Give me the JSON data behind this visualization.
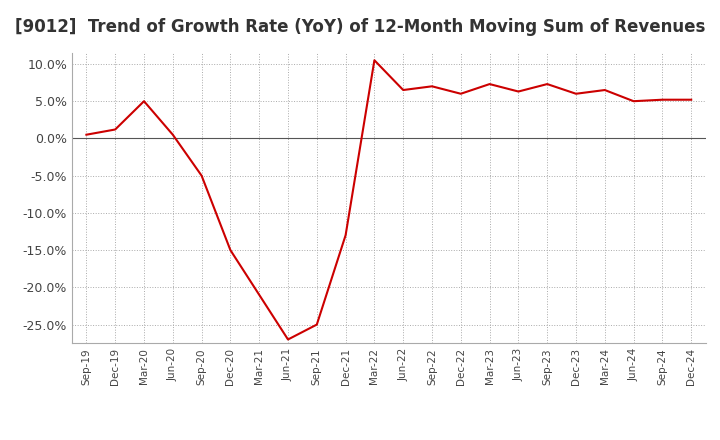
{
  "title": "[9012]  Trend of Growth Rate (YoY) of 12-Month Moving Sum of Revenues",
  "title_fontsize": 12,
  "line_color": "#cc0000",
  "background_color": "#ffffff",
  "plot_bg_color": "#ffffff",
  "grid_color": "#aaaaaa",
  "zero_line_color": "#555555",
  "ylim": [
    -0.275,
    0.115
  ],
  "yticks": [
    0.1,
    0.05,
    0.0,
    -0.05,
    -0.1,
    -0.15,
    -0.2,
    -0.25
  ],
  "x_labels": [
    "Sep-19",
    "Dec-19",
    "Mar-20",
    "Jun-20",
    "Sep-20",
    "Dec-20",
    "Mar-21",
    "Jun-21",
    "Sep-21",
    "Dec-21",
    "Mar-22",
    "Jun-22",
    "Sep-22",
    "Dec-22",
    "Mar-23",
    "Jun-23",
    "Sep-23",
    "Dec-23",
    "Mar-24",
    "Jun-24",
    "Sep-24",
    "Dec-24"
  ],
  "values": [
    0.005,
    0.012,
    0.05,
    0.005,
    -0.05,
    -0.15,
    -0.21,
    -0.27,
    -0.25,
    -0.13,
    0.105,
    0.065,
    0.07,
    0.06,
    0.073,
    0.063,
    0.073,
    0.06,
    0.065,
    0.05,
    0.052,
    0.052
  ]
}
